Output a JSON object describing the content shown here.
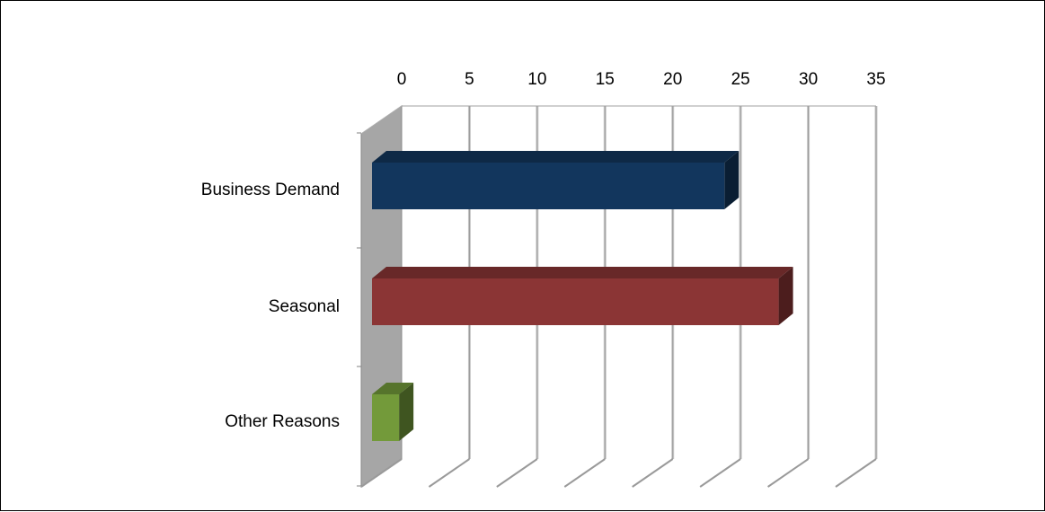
{
  "chart_data": {
    "type": "bar",
    "orientation": "horizontal",
    "style": "3d",
    "categories": [
      "Business Demand",
      "Seasonal",
      "Other Reasons"
    ],
    "values": [
      26,
      30,
      2
    ],
    "colors": [
      "#12365d",
      "#8b3535",
      "#739a3a"
    ],
    "xlim": [
      0,
      35
    ],
    "xticks": [
      0,
      5,
      10,
      15,
      20,
      25,
      30,
      35
    ],
    "grid": true,
    "legend": "none",
    "title": "",
    "xlabel": "",
    "ylabel": ""
  }
}
